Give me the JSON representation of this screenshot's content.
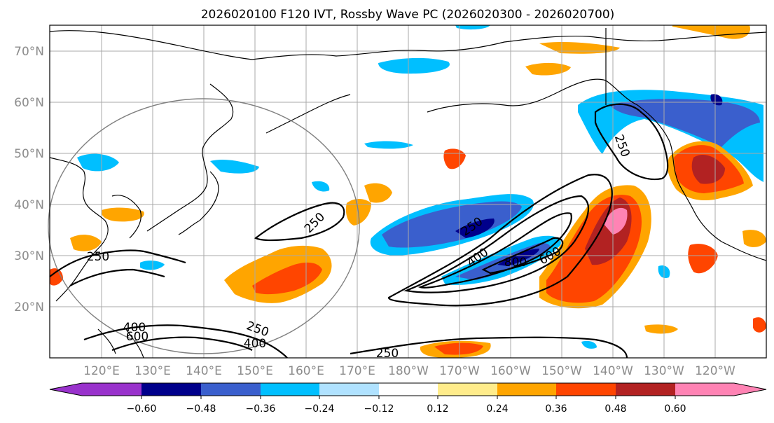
{
  "title": "2026020100 F120 IVT, Rossby Wave PC (2026020300 - 2026020700)",
  "lat_labels": [
    "70°N",
    "60°N",
    "50°N",
    "40°N",
    "30°N",
    "20°N"
  ],
  "lon_labels": [
    "120°E",
    "130°E",
    "140°E",
    "150°E",
    "160°E",
    "170°E",
    "180°W",
    "170°W",
    "160°W",
    "150°W",
    "140°W",
    "130°W",
    "120°W"
  ],
  "colorbar": {
    "ticks": [
      "−0.60",
      "−0.48",
      "−0.36",
      "−0.24",
      "−0.12",
      "0.12",
      "0.24",
      "0.36",
      "0.48",
      "0.60"
    ],
    "colors": [
      "#9932cc",
      "#00008b",
      "#3a5fcd",
      "#00bfff",
      "#b0e2ff",
      "#ffffff",
      "#ffec8b",
      "#ffa500",
      "#ff4500",
      "#b22222",
      "#ff83b4"
    ]
  },
  "ivt_contour_labels": [
    "250",
    "250",
    "250",
    "400",
    "600",
    "400",
    "250",
    "400",
    "600",
    "800",
    "250",
    "250"
  ],
  "colors": {
    "grid": "#a9a9a9",
    "contour": "#000000",
    "circle": "#808080"
  }
}
